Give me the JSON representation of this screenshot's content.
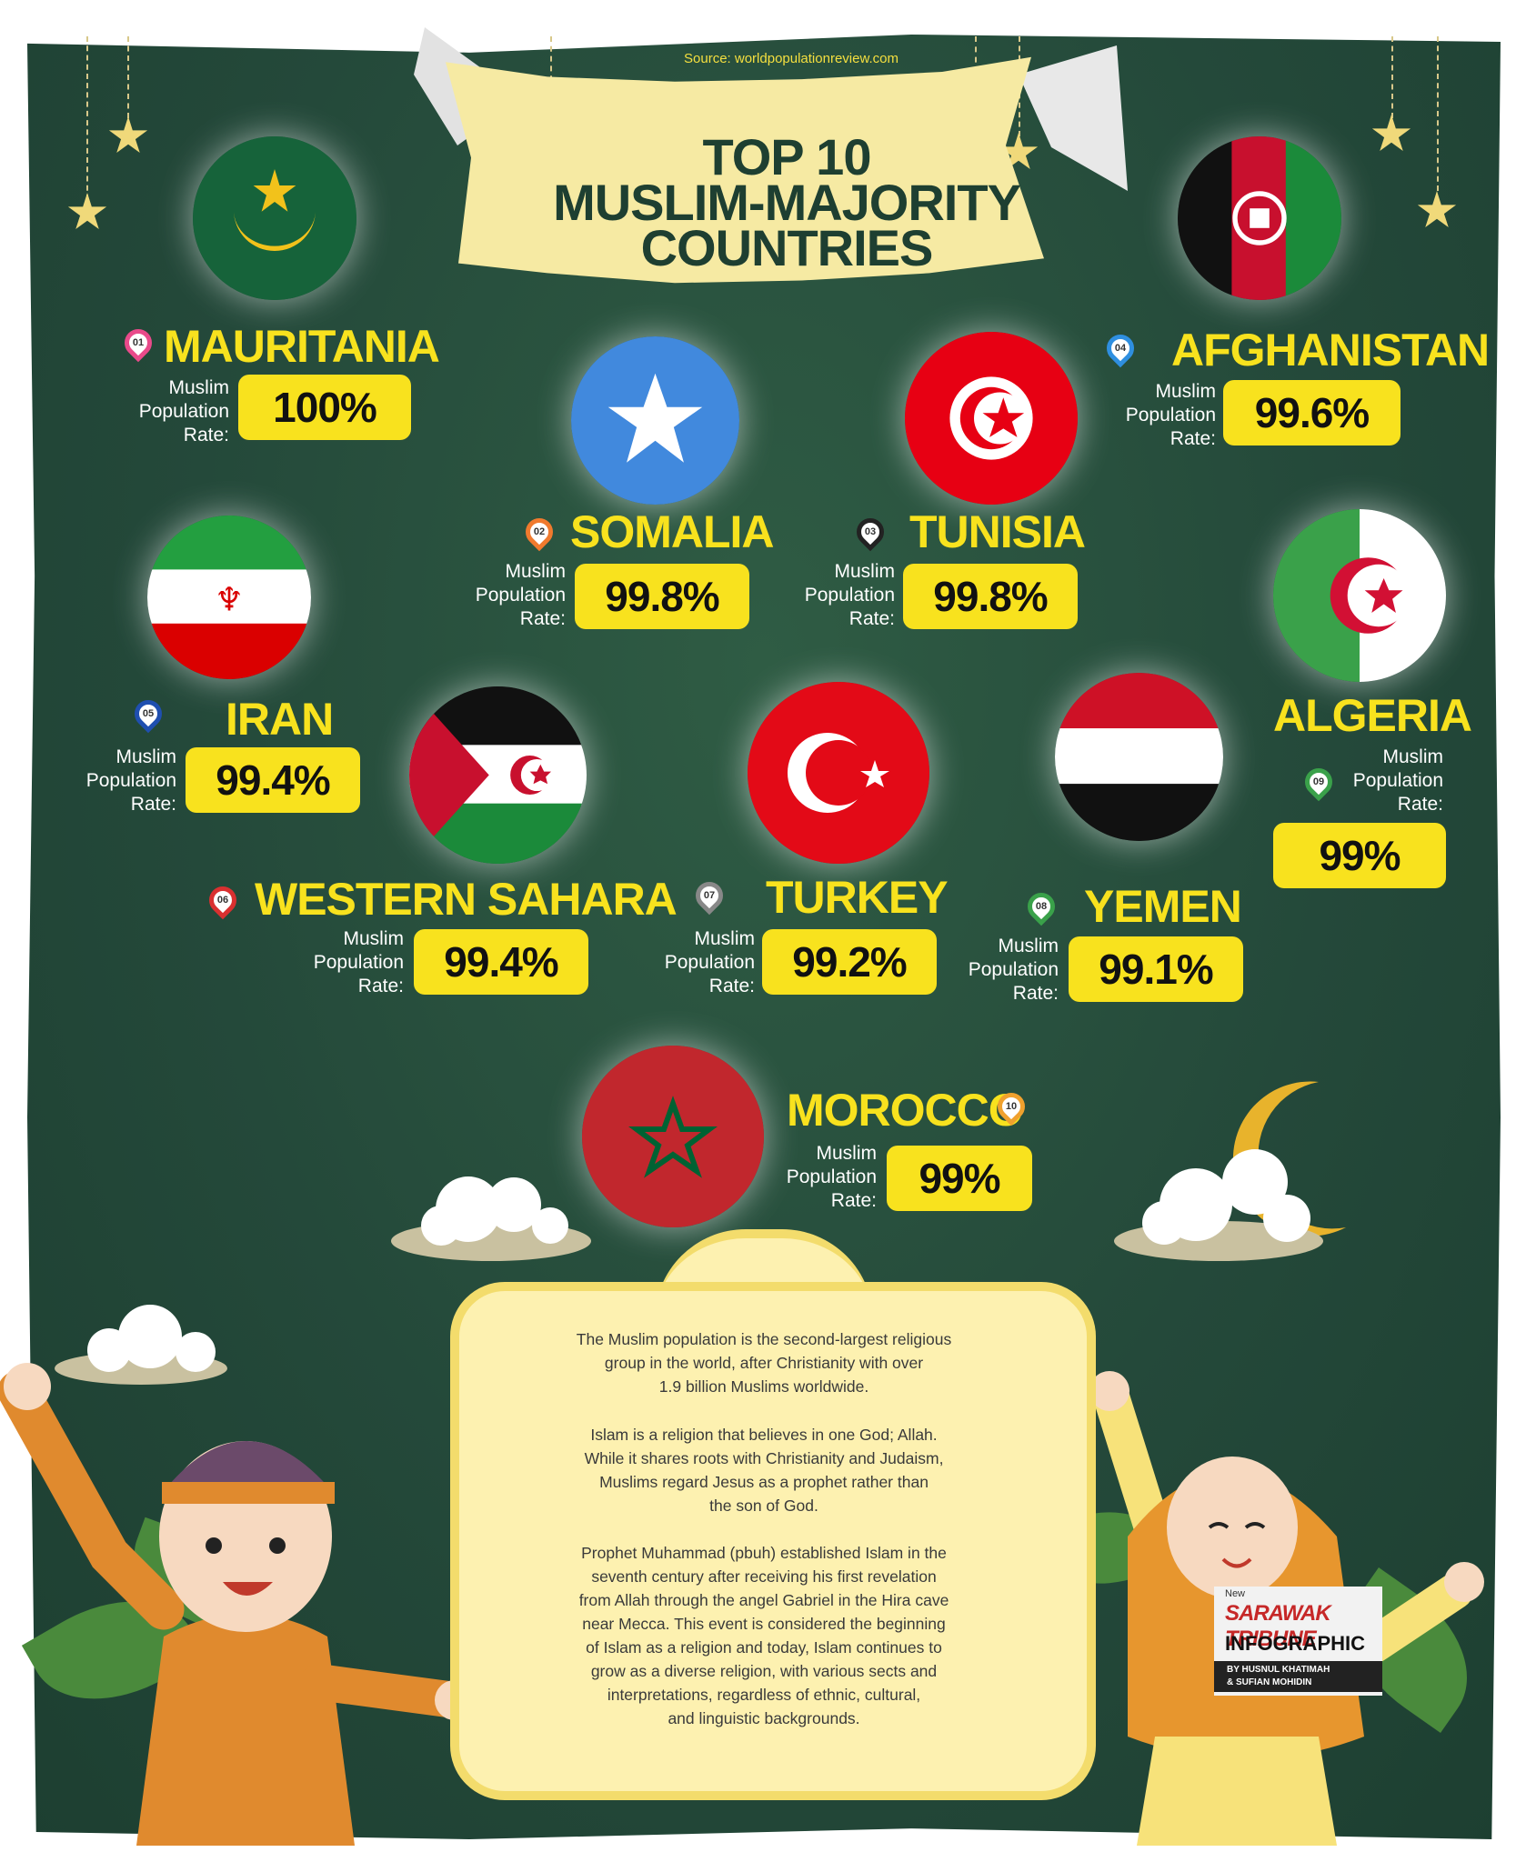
{
  "source": "Source: worldpopulationreview.com",
  "title_lines": [
    "TOP 10",
    "MUSLIM-MAJORITY",
    "COUNTRIES"
  ],
  "rate_label_lines": [
    "Muslim",
    "Population",
    "Rate:"
  ],
  "countries": [
    {
      "rank": "01",
      "name": "MAURITANIA",
      "rate": "100%",
      "rank_color": "#e94a8a"
    },
    {
      "rank": "02",
      "name": "SOMALIA",
      "rate": "99.8%",
      "rank_color": "#f07a2e"
    },
    {
      "rank": "03",
      "name": "TUNISIA",
      "rate": "99.8%",
      "rank_color": "#222222"
    },
    {
      "rank": "04",
      "name": "AFGHANISTAN",
      "rate": "99.6%",
      "rank_color": "#2f8fe0"
    },
    {
      "rank": "05",
      "name": "IRAN",
      "rate": "99.4%",
      "rank_color": "#1f4fb0"
    },
    {
      "rank": "06",
      "name": "WESTERN SAHARA",
      "rate": "99.4%",
      "rank_color": "#d93030"
    },
    {
      "rank": "07",
      "name": "TURKEY",
      "rate": "99.2%",
      "rank_color": "#888888"
    },
    {
      "rank": "08",
      "name": "YEMEN",
      "rate": "99.1%",
      "rank_color": "#3aa14a"
    },
    {
      "rank": "09",
      "name": "ALGERIA",
      "rate": "99%",
      "rank_color": "#3aa14a"
    },
    {
      "rank": "10",
      "name": "MOROCCO",
      "rate": "99%",
      "rank_color": "#f0a12e"
    }
  ],
  "paragraphs": [
    [
      "The Muslim population is the second-largest religious",
      "group in the world, after Christianity with over",
      "1.9 billion Muslims worldwide."
    ],
    [
      "Islam is a religion that believes in one God; Allah.",
      "While it shares roots with Christianity and Judaism,",
      "Muslims regard Jesus as a prophet rather than",
      "the son of God."
    ],
    [
      "Prophet Muhammad (pbuh) established Islam in the",
      "seventh century after receiving his first revelation",
      "from Allah through the angel Gabriel in the Hira cave",
      "near Mecca. This event is considered the beginning",
      "of Islam as a religion and today, Islam continues to",
      "grow as a diverse religion, with various sects and",
      "interpretations, regardless of ethnic, cultural,",
      "and linguistic backgrounds."
    ]
  ],
  "logo": {
    "small": "New",
    "brand": "SARAWAK TRIBUNE",
    "kind": "INFOGRAPHIC",
    "credit_1": "BY HUSNUL KHATIMAH",
    "credit_2": "& SUFIAN MOHIDIN"
  },
  "colors": {
    "board": "#24493a",
    "accent": "#f8e21e",
    "banner": "#f6eaa3",
    "text_box": "#fdf1b0"
  }
}
